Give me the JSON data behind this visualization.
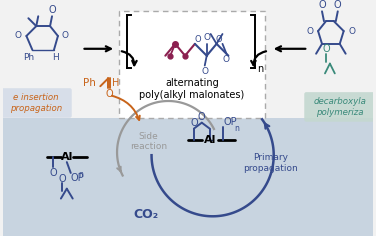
{
  "colors": {
    "dark_blue": "#354a8c",
    "purple_red": "#8b2050",
    "orange_brown": "#c8641a",
    "teal": "#3a8a7a",
    "gray": "#999999",
    "black": "#1a1a1a",
    "light_blue_bg": "#c8d4e0",
    "top_bg": "#f2f2f2",
    "white": "#ffffff"
  },
  "title": "alternating\npoly(alkyl malonates)",
  "side_reaction": "Side\nreaction",
  "primary_prop": "Primary\npropagation",
  "co2": "CO₂",
  "insertion": "e insertion\npropagation",
  "decarboxyla": "decarboxyla\npolymeriza"
}
